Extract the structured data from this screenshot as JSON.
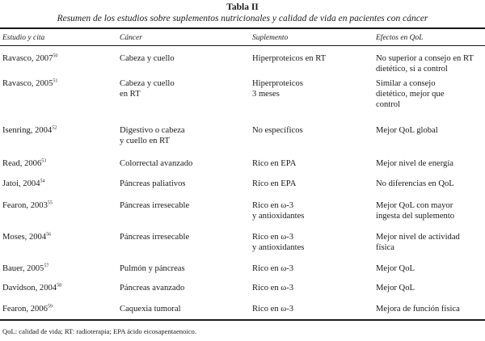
{
  "table": {
    "title": "Tabla II",
    "subtitle": "Resumen de los estudios sobre suplementos nutricionales y calidad de vida en pacientes con cáncer",
    "headers": [
      "Estudio y cita",
      "Cáncer",
      "Suplemento",
      "Efectos en QoL"
    ],
    "rows": [
      {
        "study": "Ravasco, 2007",
        "ref": "50",
        "cancer": [
          "Cabeza y cuello"
        ],
        "supplement": [
          "Hiperproteicos en RT"
        ],
        "effect": [
          "No superior a consejo en RT",
          "dietético, sí a control"
        ]
      },
      {
        "study": "Ravasco, 2005",
        "ref": "51",
        "cancer": [
          "Cabeza y cuello",
          "en RT"
        ],
        "supplement": [
          "Hiperproteicos",
          "3 meses"
        ],
        "effect": [
          "Similar a consejo",
          "dietético, mejor que",
          "control"
        ]
      },
      {
        "study": "Isenring, 2004",
        "ref": "52",
        "cancer": [
          "Digestivo o cabeza",
          "y cuello en RT"
        ],
        "supplement": [
          "No específicos"
        ],
        "effect": [
          "Mejor QoL global"
        ]
      },
      {
        "study": "Read, 2006",
        "ref": "53",
        "cancer": [
          "Colorrectal avanzado"
        ],
        "supplement": [
          "Rico en EPA"
        ],
        "effect": [
          "Mejor nivel de energía"
        ]
      },
      {
        "study": "Jatoi, 2004",
        "ref": "54",
        "cancer": [
          "Páncreas paliativos"
        ],
        "supplement": [
          "Rico en EPA"
        ],
        "effect": [
          "No diferencias en QoL"
        ]
      },
      {
        "study": "Fearon, 2003",
        "ref": "55",
        "cancer": [
          "Páncreas irresecable"
        ],
        "supplement": [
          "Rico en ω-3",
          "y antioxidantes"
        ],
        "effect": [
          "Mejor QoL con mayor",
          "ingesta del suplemento"
        ]
      },
      {
        "study": "Moses, 2004",
        "ref": "56",
        "cancer": [
          "Páncreas irresecable"
        ],
        "supplement": [
          "Rico en ω-3",
          "y antioxidantes"
        ],
        "effect": [
          "Mejor nivel de actividad",
          "física"
        ]
      },
      {
        "study": "Bauer, 2005",
        "ref": "57",
        "cancer": [
          "Pulmón y páncreas"
        ],
        "supplement": [
          "Rico en ω-3"
        ],
        "effect": [
          "Mejor QoL"
        ]
      },
      {
        "study": "Davidson, 2004",
        "ref": "58",
        "cancer": [
          "Páncreas avanzado"
        ],
        "supplement": [
          "Rico en ω-3"
        ],
        "effect": [
          "Mejor QoL"
        ]
      },
      {
        "study": "Fearon, 2006",
        "ref": "59",
        "cancer": [
          "Caquexia tumoral"
        ],
        "supplement": [
          "Rico en ω-3"
        ],
        "effect": [
          "Mejora de función física"
        ]
      }
    ],
    "footnote": "QoL: calidad de vida; RT: radioterapia; EPA ácido eicosapentaenoico."
  }
}
